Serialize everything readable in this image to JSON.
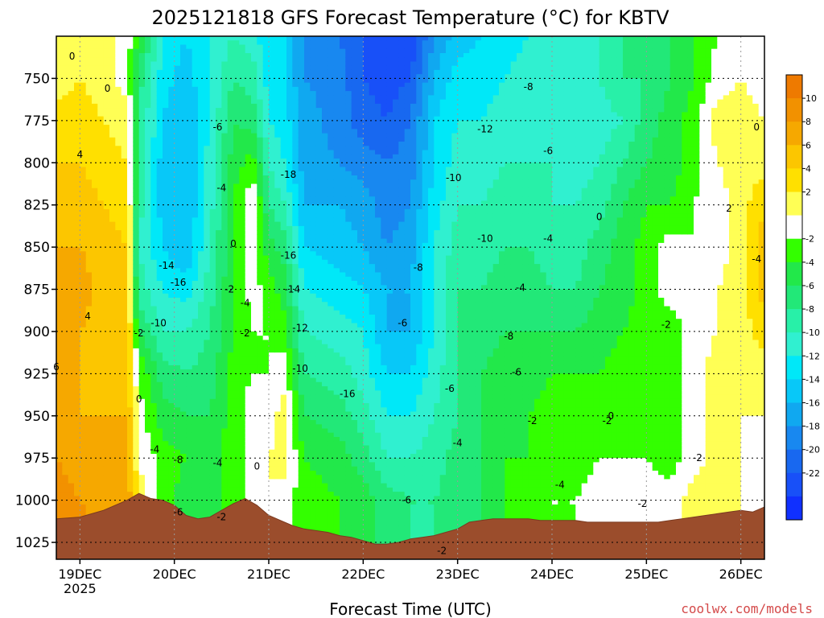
{
  "chart_data": {
    "type": "heatmap",
    "title": "2025121818 GFS Forecast Temperature (°C) for KBTV",
    "xlabel": "Forecast Time (UTC)",
    "ylabel": "",
    "credit": "coolwx.com/models",
    "y_scale": "pressure (inverted, hPa)",
    "ylim": [
      1035,
      725
    ],
    "y_ticks": [
      "750",
      "775",
      "800",
      "825",
      "850",
      "875",
      "900",
      "925",
      "950",
      "975",
      "1000",
      "1025"
    ],
    "y_tick_values": [
      750,
      775,
      800,
      825,
      850,
      875,
      900,
      925,
      950,
      975,
      1000,
      1025
    ],
    "x_tick_labels": [
      "19DEC",
      "20DEC",
      "21DEC",
      "22DEC",
      "23DEC",
      "24DEC",
      "25DEC",
      "26DEC"
    ],
    "x_tick_year": "2025",
    "x_tick_hours": [
      6,
      30,
      54,
      78,
      102,
      126,
      150,
      174
    ],
    "xlim_hours": [
      0,
      180
    ],
    "grid": true,
    "colorbar": {
      "placement": "right",
      "levels": [
        12,
        10,
        8,
        6,
        4,
        2,
        0,
        -2,
        -4,
        -6,
        -8,
        -10,
        -12,
        -14,
        -16,
        -18,
        -20,
        -22,
        -24
      ],
      "tick_labels": [
        "10",
        "8",
        "6",
        "4",
        "2",
        "-2",
        "-4",
        "-6",
        "-8",
        "-10",
        "-12",
        "-14",
        "-16",
        "-18",
        "-20",
        "-22"
      ],
      "colors": [
        "#ee7a00",
        "#f29100",
        "#f6a800",
        "#fcc600",
        "#ffe000",
        "#ffff55",
        "#ffffff",
        "#33ff00",
        "#22e84a",
        "#22e878",
        "#28f0a8",
        "#30f0d0",
        "#00e8f8",
        "#08c8f8",
        "#10a8f0",
        "#1888f0",
        "#1868f0",
        "#1850f8",
        "#1030ff"
      ]
    },
    "temperature_samples": {
      "pressure_levels": [
        725,
        750,
        775,
        800,
        825,
        850,
        875,
        900,
        925,
        950,
        975,
        1000,
        1025
      ],
      "times": [
        {
          "hour": 0,
          "values": [
            1,
            1,
            3,
            4,
            5,
            6,
            7,
            7,
            7,
            8,
            8,
            9,
            9
          ]
        },
        {
          "hour": 6,
          "values": [
            1,
            2,
            3,
            4,
            5,
            6,
            7,
            6,
            6,
            6,
            7,
            8,
            9
          ]
        },
        {
          "hour": 12,
          "values": [
            1,
            1,
            2,
            3,
            4,
            5,
            5,
            5,
            5,
            6,
            6,
            7,
            8
          ]
        },
        {
          "hour": 18,
          "values": [
            -1,
            -1,
            1,
            2,
            3,
            4,
            4,
            5,
            5,
            6,
            7,
            8,
            9
          ]
        },
        {
          "hour": 21,
          "values": [
            -4,
            -7,
            -8,
            -8,
            -9,
            -10,
            -9,
            -6,
            -2,
            -1,
            0,
            1,
            2
          ]
        },
        {
          "hour": 27,
          "values": [
            -12,
            -13,
            -14,
            -15,
            -15,
            -14,
            -12,
            -10,
            -7,
            -5,
            -3,
            -3,
            -3
          ]
        },
        {
          "hour": 33,
          "values": [
            -14,
            -15,
            -16,
            -16,
            -16,
            -16,
            -13,
            -10,
            -8,
            -6,
            -4,
            -5,
            -5
          ]
        },
        {
          "hour": 39,
          "values": [
            -12,
            -12,
            -12,
            -11,
            -11,
            -10,
            -9,
            -8,
            -7,
            -6,
            -5,
            -5,
            -5
          ]
        },
        {
          "hour": 45,
          "values": [
            -10,
            -8,
            -6,
            -5,
            -4,
            -4,
            -4,
            -4,
            -3,
            -3,
            -3,
            -3,
            -3
          ]
        },
        {
          "hour": 50,
          "values": [
            -11,
            -9,
            -7,
            -3,
            0,
            -1,
            -1,
            -2,
            -2,
            -1,
            -1,
            -1,
            -1
          ]
        },
        {
          "hour": 54,
          "values": [
            -14,
            -13,
            -12,
            -10,
            -8,
            -5,
            -3,
            -2,
            -2,
            -1,
            0,
            0,
            0
          ]
        },
        {
          "hour": 58,
          "values": [
            -14,
            -14,
            -13,
            -12,
            -10,
            -7,
            -5,
            -3,
            -1,
            1,
            1,
            -1,
            -1
          ]
        },
        {
          "hour": 63,
          "values": [
            -18,
            -18,
            -17,
            -17,
            -16,
            -14,
            -12,
            -10,
            -8,
            -6,
            -4,
            -3,
            -3
          ]
        },
        {
          "hour": 72,
          "values": [
            -20,
            -19,
            -19,
            -18,
            -16,
            -15,
            -13,
            -11,
            -9,
            -7,
            -5,
            -4,
            -4
          ]
        },
        {
          "hour": 78,
          "values": [
            -22,
            -22,
            -21,
            -19,
            -17,
            -16,
            -14,
            -12,
            -11,
            -9,
            -7,
            -5,
            -5
          ]
        },
        {
          "hour": 84,
          "values": [
            -24,
            -23,
            -22,
            -20,
            -19,
            -18,
            -16,
            -16,
            -14,
            -12,
            -10,
            -7,
            -7
          ]
        },
        {
          "hour": 90,
          "values": [
            -24,
            -22,
            -20,
            -19,
            -18,
            -17,
            -16,
            -16,
            -14,
            -12,
            -10,
            -8,
            -8
          ]
        },
        {
          "hour": 96,
          "values": [
            -18,
            -16,
            -14,
            -14,
            -13,
            -12,
            -12,
            -12,
            -11,
            -10,
            -9,
            -8,
            -8
          ]
        },
        {
          "hour": 102,
          "values": [
            -15,
            -13,
            -12,
            -11,
            -10,
            -9,
            -8,
            -8,
            -8,
            -8,
            -7,
            -7,
            -7
          ]
        },
        {
          "hour": 108,
          "values": [
            -14,
            -13,
            -12,
            -11,
            -10,
            -9,
            -8,
            -7,
            -6,
            -6,
            -6,
            -6,
            -6
          ]
        },
        {
          "hour": 114,
          "values": [
            -13,
            -12,
            -11,
            -10,
            -9,
            -8,
            -7,
            -6,
            -5,
            -5,
            -4,
            -4,
            -4
          ]
        },
        {
          "hour": 120,
          "values": [
            -12,
            -11,
            -10,
            -10,
            -9,
            -8,
            -7,
            -6,
            -5,
            -4,
            -4,
            -3,
            -3
          ]
        },
        {
          "hour": 126,
          "values": [
            -12,
            -11,
            -11,
            -10,
            -10,
            -9,
            -8,
            -6,
            -4,
            -3,
            -3,
            -2,
            -2
          ]
        },
        {
          "hour": 132,
          "values": [
            -12,
            -12,
            -12,
            -11,
            -10,
            -9,
            -8,
            -6,
            -4,
            -3,
            -3,
            -2,
            -2
          ]
        },
        {
          "hour": 138,
          "values": [
            -10,
            -10,
            -11,
            -10,
            -9,
            -7,
            -6,
            -5,
            -4,
            -3,
            -2,
            -1,
            -1
          ]
        },
        {
          "hour": 144,
          "values": [
            -8,
            -8,
            -10,
            -8,
            -6,
            -5,
            -5,
            -4,
            -3,
            -3,
            -2,
            -1,
            -1
          ]
        },
        {
          "hour": 150,
          "values": [
            -7,
            -8,
            -7,
            -6,
            -4,
            -3,
            -3,
            -3,
            -2,
            -2,
            -2,
            -1,
            -1
          ]
        },
        {
          "hour": 156,
          "values": [
            -6,
            -6,
            -5,
            -5,
            -4,
            -1,
            -1,
            -3,
            -3,
            -3,
            -3,
            -1,
            -1
          ]
        },
        {
          "hour": 162,
          "values": [
            -4,
            -4,
            -3,
            -3,
            -2,
            -2,
            -2,
            -1,
            -1,
            -1,
            -1,
            1,
            1
          ]
        },
        {
          "hour": 168,
          "values": [
            -2,
            -1,
            1,
            0,
            -1,
            -1,
            0,
            0,
            1,
            1,
            1,
            1,
            1
          ]
        },
        {
          "hour": 174,
          "values": [
            -1,
            0,
            1,
            1,
            1,
            1,
            1,
            1,
            0,
            0,
            0,
            0,
            0
          ]
        },
        {
          "hour": 180,
          "values": [
            -1,
            -1,
            0,
            1,
            4,
            5,
            5,
            3,
            1,
            0,
            0,
            0,
            0
          ]
        }
      ]
    },
    "surface_pressure": {
      "hours": [
        0,
        6,
        12,
        18,
        21,
        24,
        27,
        30,
        33,
        36,
        39,
        42,
        45,
        48,
        51,
        54,
        57,
        60,
        63,
        66,
        69,
        72,
        75,
        78,
        81,
        84,
        87,
        90,
        93,
        96,
        99,
        102,
        105,
        108,
        111,
        114,
        117,
        120,
        123,
        126,
        129,
        132,
        135,
        138,
        141,
        144,
        147,
        150,
        153,
        156,
        159,
        162,
        165,
        168,
        171,
        174,
        177,
        180
      ],
      "values": [
        1011,
        1010,
        1006,
        1000,
        996,
        999,
        1000,
        1003,
        1009,
        1011,
        1010,
        1006,
        1002,
        999,
        1003,
        1009,
        1012,
        1015,
        1017,
        1018,
        1019,
        1021,
        1022,
        1024,
        1026,
        1026,
        1025,
        1023,
        1022,
        1021,
        1019,
        1017,
        1013,
        1012,
        1011,
        1011,
        1011,
        1011,
        1012,
        1012,
        1012,
        1012,
        1013,
        1013,
        1013,
        1013,
        1013,
        1013,
        1013,
        1012,
        1011,
        1010,
        1009,
        1008,
        1007,
        1006,
        1007,
        1004
      ]
    },
    "contour_labels": [
      {
        "text": "0",
        "hour": 4,
        "p": 737
      },
      {
        "text": "0",
        "hour": 13,
        "p": 756
      },
      {
        "text": "4",
        "hour": 6,
        "p": 795
      },
      {
        "text": "4",
        "hour": 8,
        "p": 891
      },
      {
        "text": "6",
        "hour": 0,
        "p": 921
      },
      {
        "text": "-2",
        "hour": 21,
        "p": 901
      },
      {
        "text": "0",
        "hour": 21,
        "p": 940
      },
      {
        "text": "-14",
        "hour": 28,
        "p": 861
      },
      {
        "text": "-16",
        "hour": 31,
        "p": 871
      },
      {
        "text": "-10",
        "hour": 26,
        "p": 895
      },
      {
        "text": "-6",
        "hour": 41,
        "p": 779
      },
      {
        "text": "-4",
        "hour": 42,
        "p": 815
      },
      {
        "text": "0",
        "hour": 45,
        "p": 848
      },
      {
        "text": "-2",
        "hour": 44,
        "p": 875
      },
      {
        "text": "-4",
        "hour": 48,
        "p": 883
      },
      {
        "text": "-2",
        "hour": 48,
        "p": 901
      },
      {
        "text": "-4",
        "hour": 25,
        "p": 970
      },
      {
        "text": "-8",
        "hour": 31,
        "p": 976
      },
      {
        "text": "-6",
        "hour": 31,
        "p": 1007
      },
      {
        "text": "-4",
        "hour": 41,
        "p": 978
      },
      {
        "text": "-2",
        "hour": 42,
        "p": 1010
      },
      {
        "text": "0",
        "hour": 51,
        "p": 980
      },
      {
        "text": "-18",
        "hour": 59,
        "p": 807
      },
      {
        "text": "-16",
        "hour": 59,
        "p": 855
      },
      {
        "text": "-14",
        "hour": 60,
        "p": 875
      },
      {
        "text": "-12",
        "hour": 62,
        "p": 898
      },
      {
        "text": "-10",
        "hour": 62,
        "p": 922
      },
      {
        "text": "-16",
        "hour": 74,
        "p": 937
      },
      {
        "text": "-12",
        "hour": 109,
        "p": 780
      },
      {
        "text": "-10",
        "hour": 101,
        "p": 809
      },
      {
        "text": "-10",
        "hour": 109,
        "p": 845
      },
      {
        "text": "-8",
        "hour": 92,
        "p": 862
      },
      {
        "text": "-6",
        "hour": 88,
        "p": 895
      },
      {
        "text": "-6",
        "hour": 100,
        "p": 934
      },
      {
        "text": "-4",
        "hour": 102,
        "p": 966
      },
      {
        "text": "-6",
        "hour": 89,
        "p": 1000
      },
      {
        "text": "-2",
        "hour": 98,
        "p": 1030
      },
      {
        "text": "-8",
        "hour": 120,
        "p": 755
      },
      {
        "text": "-6",
        "hour": 125,
        "p": 793
      },
      {
        "text": "-4",
        "hour": 125,
        "p": 845
      },
      {
        "text": "-4",
        "hour": 118,
        "p": 874
      },
      {
        "text": "-8",
        "hour": 115,
        "p": 903
      },
      {
        "text": "-6",
        "hour": 117,
        "p": 924
      },
      {
        "text": "-2",
        "hour": 121,
        "p": 953
      },
      {
        "text": "-2",
        "hour": 140,
        "p": 953
      },
      {
        "text": "-4",
        "hour": 128,
        "p": 991
      },
      {
        "text": "-2",
        "hour": 149,
        "p": 1002
      },
      {
        "text": "-2",
        "hour": 163,
        "p": 975
      },
      {
        "text": "0",
        "hour": 138,
        "p": 832
      },
      {
        "text": "-2",
        "hour": 155,
        "p": 896
      },
      {
        "text": "0",
        "hour": 141,
        "p": 950
      },
      {
        "text": "0",
        "hour": 178,
        "p": 779
      },
      {
        "text": "2",
        "hour": 171,
        "p": 827
      },
      {
        "text": "-4",
        "hour": 178,
        "p": 857
      }
    ]
  }
}
